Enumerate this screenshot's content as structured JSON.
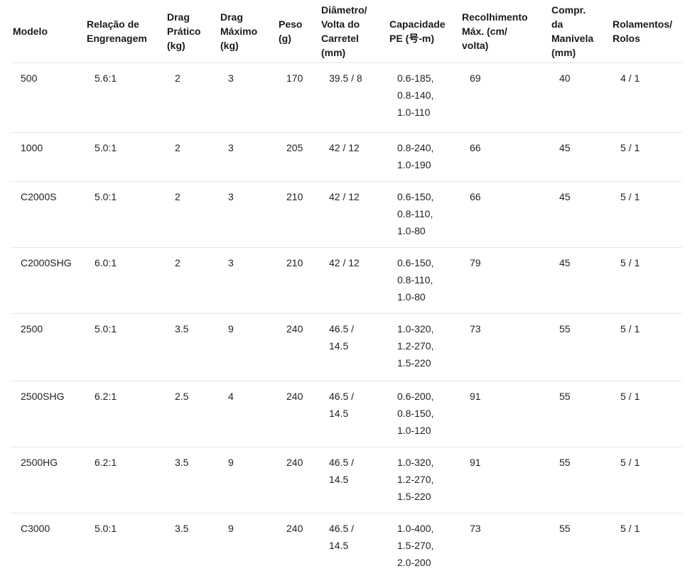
{
  "colors": {
    "background": "#ffffff",
    "divider": "#e7e7e7",
    "header_text": "#1a1a1a",
    "body_text": "#1f1f1f"
  },
  "table": {
    "columns": {
      "modelo": "Modelo",
      "relacao_engrenagem": "Relação de\nEngrenagem",
      "drag_pratico": "Drag\nPrático\n(kg)",
      "drag_maximo": "Drag\nMáximo\n(kg)",
      "peso": "Peso\n(g)",
      "diametro_volta": "Diâmetro/\nVolta do\nCarretel\n(mm)",
      "capacidade_pe": "Capacidade\nPE (号-m)",
      "recolhimento_max": "Recolhimento\nMáx. (cm/\nvolta)",
      "compr_manivela": "Compr.\nda\nManivela\n(mm)",
      "rolamentos_rolos": "Rolamentos/\nRolos"
    },
    "rows": [
      {
        "modelo": "500",
        "relacao_engrenagem": "5.6:1",
        "drag_pratico": "2",
        "drag_maximo": "3",
        "peso": "170",
        "diametro_volta": "39.5 / 8",
        "capacidade_pe": "0.6-185,\n0.8-140,\n1.0-110",
        "recolhimento_max": "69",
        "compr_manivela": "40",
        "rolamentos_rolos": "4 / 1"
      },
      {
        "modelo": "1000",
        "relacao_engrenagem": "5.0:1",
        "drag_pratico": "2",
        "drag_maximo": "3",
        "peso": "205",
        "diametro_volta": "42 / 12",
        "capacidade_pe": "0.8-240,\n1.0-190",
        "recolhimento_max": "66",
        "compr_manivela": "45",
        "rolamentos_rolos": "5 / 1"
      },
      {
        "modelo": "C2000S",
        "relacao_engrenagem": "5.0:1",
        "drag_pratico": "2",
        "drag_maximo": "3",
        "peso": "210",
        "diametro_volta": "42 / 12",
        "capacidade_pe": "0.6-150,\n0.8-110,\n1.0-80",
        "recolhimento_max": "66",
        "compr_manivela": "45",
        "rolamentos_rolos": "5 / 1"
      },
      {
        "modelo": "C2000SHG",
        "relacao_engrenagem": "6.0:1",
        "drag_pratico": "2",
        "drag_maximo": "3",
        "peso": "210",
        "diametro_volta": "42 / 12",
        "capacidade_pe": "0.6-150,\n0.8-110,\n1.0-80",
        "recolhimento_max": "79",
        "compr_manivela": "45",
        "rolamentos_rolos": "5 / 1"
      },
      {
        "modelo": "2500",
        "relacao_engrenagem": "5.0:1",
        "drag_pratico": "3.5",
        "drag_maximo": "9",
        "peso": "240",
        "diametro_volta": "46.5 /\n14.5",
        "capacidade_pe": "1.0-320,\n1.2-270,\n1.5-220",
        "recolhimento_max": "73",
        "compr_manivela": "55",
        "rolamentos_rolos": "5 / 1"
      },
      {
        "modelo": "2500SHG",
        "relacao_engrenagem": "6.2:1",
        "drag_pratico": "2.5",
        "drag_maximo": "4",
        "peso": "240",
        "diametro_volta": "46.5 /\n14.5",
        "capacidade_pe": "0.6-200,\n0.8-150,\n1.0-120",
        "recolhimento_max": "91",
        "compr_manivela": "55",
        "rolamentos_rolos": "5 / 1"
      },
      {
        "modelo": "2500HG",
        "relacao_engrenagem": "6.2:1",
        "drag_pratico": "3.5",
        "drag_maximo": "9",
        "peso": "240",
        "diametro_volta": "46.5 /\n14.5",
        "capacidade_pe": "1.0-320,\n1.2-270,\n1.5-220",
        "recolhimento_max": "91",
        "compr_manivela": "55",
        "rolamentos_rolos": "5 / 1"
      },
      {
        "modelo": "C3000",
        "relacao_engrenagem": "5.0:1",
        "drag_pratico": "3.5",
        "drag_maximo": "9",
        "peso": "240",
        "diametro_volta": "46.5 /\n14.5",
        "capacidade_pe": "1.0-400,\n1.5-270,\n2.0-200",
        "recolhimento_max": "73",
        "compr_manivela": "55",
        "rolamentos_rolos": "5 / 1"
      }
    ]
  }
}
